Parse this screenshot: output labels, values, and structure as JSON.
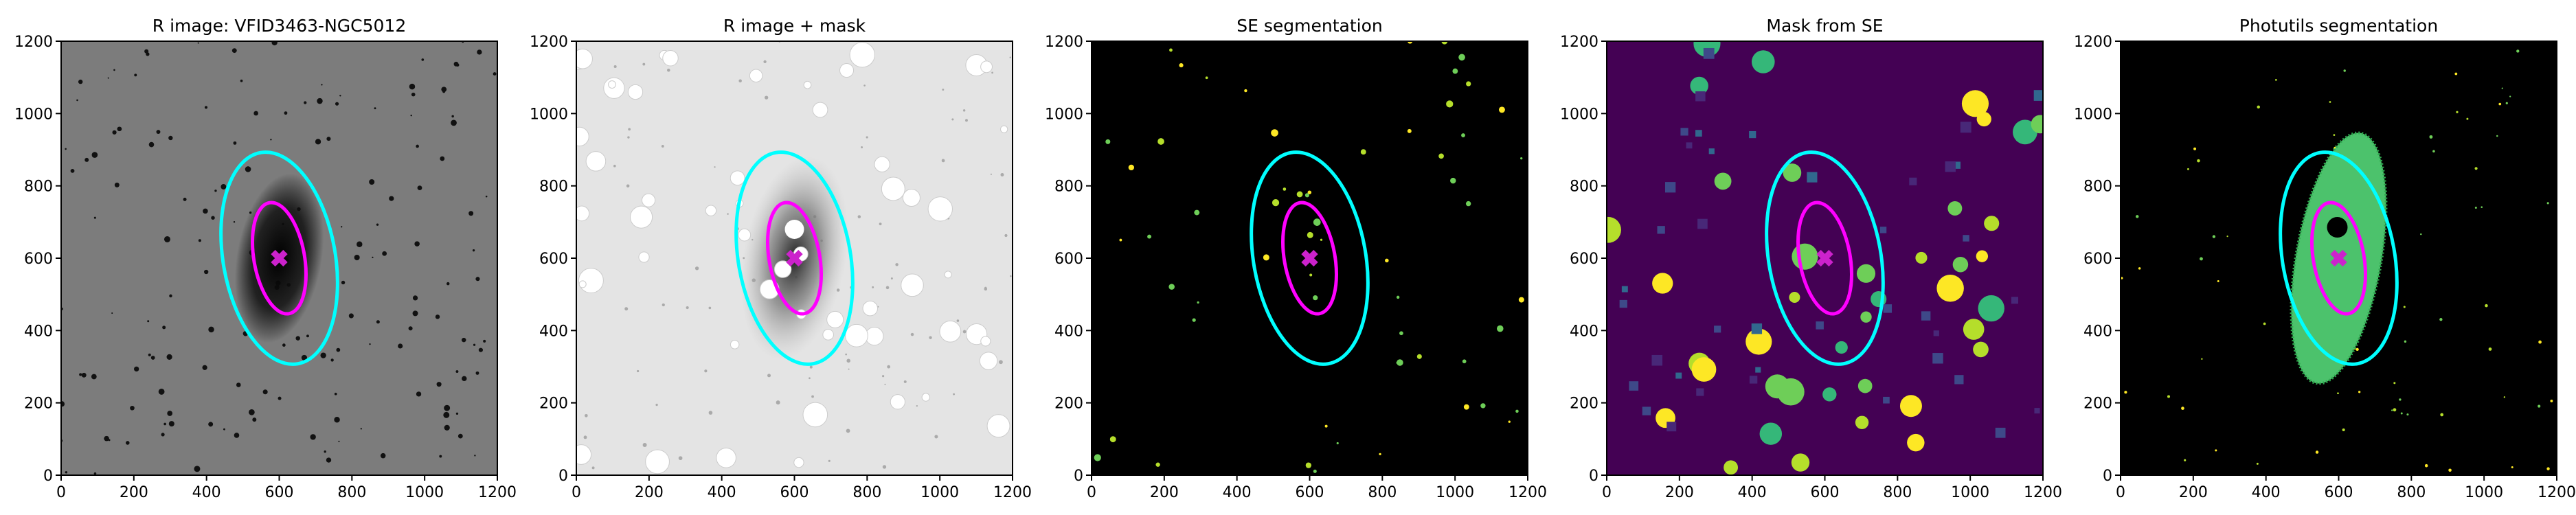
{
  "chart_data": [
    {
      "type": "image",
      "title": "R image: VFID3463-NGC5012",
      "background": "#7c7c7c",
      "xlim": [
        0,
        1200
      ],
      "ylim": [
        0,
        1200
      ],
      "xticks": [
        0,
        200,
        400,
        600,
        800,
        1000,
        1200
      ],
      "yticks": [
        0,
        200,
        400,
        600,
        800,
        1000,
        1200
      ],
      "ellipses": [
        {
          "x": 600,
          "y": 600,
          "a": 295,
          "b": 155,
          "angle": 100,
          "color": "#00ffff"
        },
        {
          "x": 600,
          "y": 600,
          "a": 155,
          "b": 70,
          "angle": 100,
          "color": "#ff00ff"
        }
      ],
      "marker": {
        "x": 600,
        "y": 600,
        "color": "#cc22cc"
      }
    },
    {
      "type": "image",
      "title": "R image + mask",
      "background": "#e4e4e4",
      "xlim": [
        0,
        1200
      ],
      "ylim": [
        0,
        1200
      ],
      "xticks": [
        0,
        200,
        400,
        600,
        800,
        1000,
        1200
      ],
      "yticks": [
        0,
        200,
        400,
        600,
        800,
        1000,
        1200
      ],
      "ellipses": [
        {
          "x": 600,
          "y": 600,
          "a": 295,
          "b": 155,
          "angle": 100,
          "color": "#00ffff"
        },
        {
          "x": 600,
          "y": 600,
          "a": 155,
          "b": 70,
          "angle": 100,
          "color": "#ff00ff"
        }
      ],
      "marker": {
        "x": 600,
        "y": 600,
        "color": "#cc22cc"
      }
    },
    {
      "type": "image",
      "title": "SE segmentation",
      "background": "#000000",
      "xlim": [
        0,
        1200
      ],
      "ylim": [
        0,
        1200
      ],
      "xticks": [
        0,
        200,
        400,
        600,
        800,
        1000,
        1200
      ],
      "yticks": [
        0,
        200,
        400,
        600,
        800,
        1000,
        1200
      ],
      "ellipses": [
        {
          "x": 600,
          "y": 600,
          "a": 295,
          "b": 155,
          "angle": 100,
          "color": "#00ffff"
        },
        {
          "x": 600,
          "y": 600,
          "a": 155,
          "b": 70,
          "angle": 100,
          "color": "#ff00ff"
        }
      ],
      "marker": {
        "x": 600,
        "y": 600,
        "color": "#cc22cc"
      }
    },
    {
      "type": "image",
      "title": "Mask from SE",
      "background": "#440154",
      "xlim": [
        0,
        1200
      ],
      "ylim": [
        0,
        1200
      ],
      "xticks": [
        0,
        200,
        400,
        600,
        800,
        1000,
        1200
      ],
      "yticks": [
        0,
        200,
        400,
        600,
        800,
        1000,
        1200
      ],
      "ellipses": [
        {
          "x": 600,
          "y": 600,
          "a": 295,
          "b": 155,
          "angle": 100,
          "color": "#00ffff"
        },
        {
          "x": 600,
          "y": 600,
          "a": 155,
          "b": 70,
          "angle": 100,
          "color": "#ff00ff"
        }
      ],
      "marker": {
        "x": 600,
        "y": 600,
        "color": "#cc22cc"
      }
    },
    {
      "type": "image",
      "title": "Photutils segmentation",
      "background": "#000000",
      "xlim": [
        0,
        1200
      ],
      "ylim": [
        0,
        1200
      ],
      "xticks": [
        0,
        200,
        400,
        600,
        800,
        1000,
        1200
      ],
      "yticks": [
        0,
        200,
        400,
        600,
        800,
        1000,
        1200
      ],
      "ellipses": [
        {
          "x": 600,
          "y": 600,
          "a": 295,
          "b": 155,
          "angle": 100,
          "color": "#00ffff"
        },
        {
          "x": 600,
          "y": 600,
          "a": 155,
          "b": 70,
          "angle": 100,
          "color": "#ff00ff"
        }
      ],
      "marker": {
        "x": 600,
        "y": 600,
        "color": "#cc22cc"
      }
    }
  ]
}
